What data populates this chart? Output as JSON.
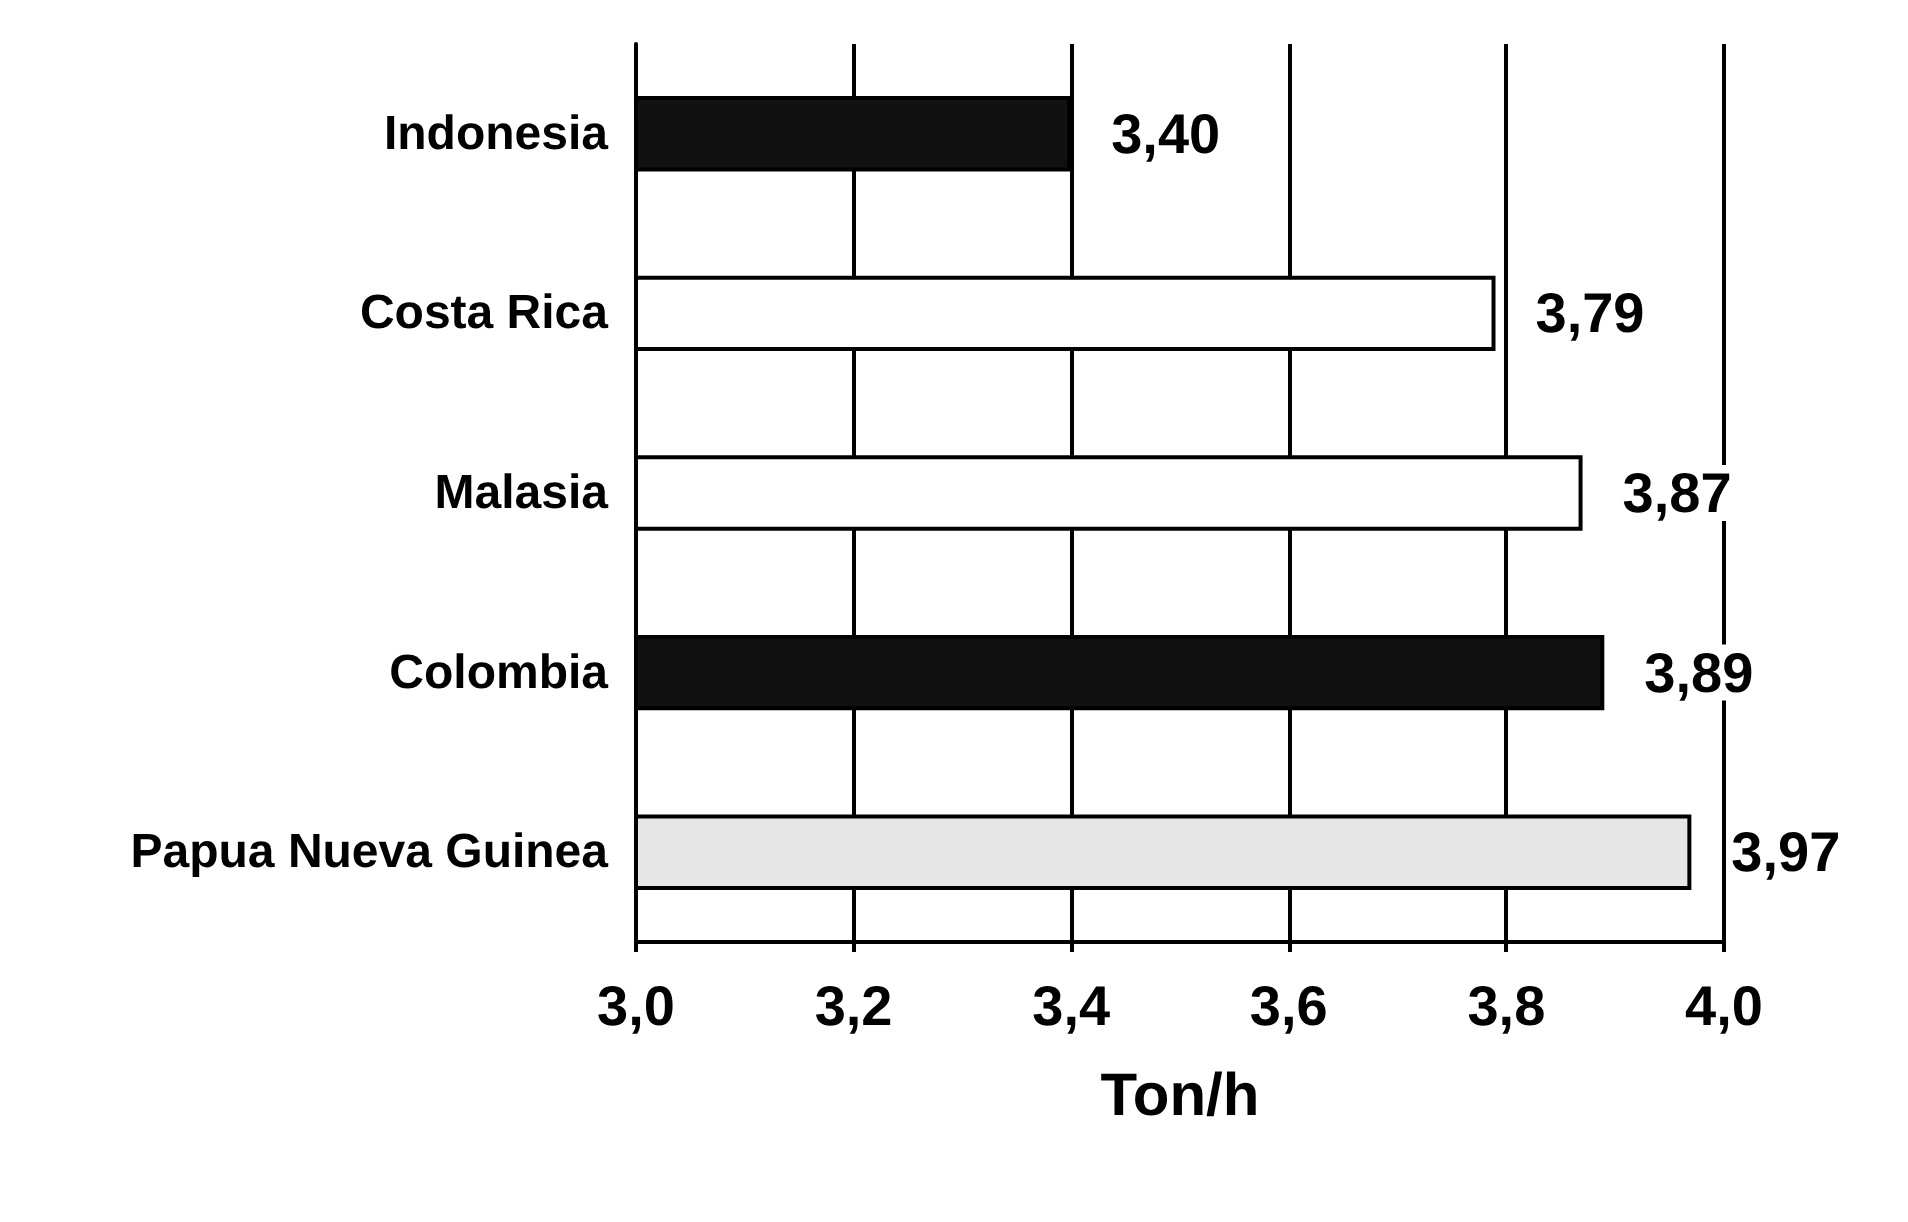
{
  "chart_data": {
    "type": "bar",
    "orientation": "horizontal",
    "xlabel": "Ton/h",
    "categories": [
      "Indonesia",
      "Costa Rica",
      "Malasia",
      "Colombia",
      "Papua Nueva Guinea"
    ],
    "values": [
      3.4,
      3.79,
      3.87,
      3.89,
      3.97
    ],
    "colors": [
      "#111111",
      "#ffffff",
      "#ffffff",
      "#111111",
      "#e6e6e6"
    ],
    "value_labels": [
      "3,40",
      "3,79",
      "3,87",
      "3,89",
      "3,97"
    ],
    "xlim": [
      3.0,
      4.0
    ],
    "xticks": [
      {
        "value": 3.0,
        "label": "3,0"
      },
      {
        "value": 3.2,
        "label": "3,2"
      },
      {
        "value": 3.4,
        "label": "3,4"
      },
      {
        "value": 3.6,
        "label": "3,6"
      },
      {
        "value": 3.8,
        "label": "3,8"
      },
      {
        "value": 4.0,
        "label": "4,0"
      }
    ],
    "grid": "x"
  }
}
